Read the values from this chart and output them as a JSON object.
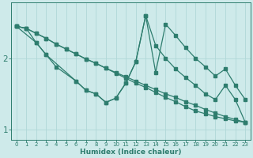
{
  "xlabel": "Humidex (Indice chaleur)",
  "bg_color": "#ceeaea",
  "line_color": "#2e7d6e",
  "grid_color": "#b0d8d8",
  "xlim": [
    -0.5,
    23.5
  ],
  "ylim": [
    0.85,
    2.78
  ],
  "yticks": [
    1,
    2
  ],
  "xticks": [
    0,
    1,
    2,
    3,
    4,
    5,
    6,
    7,
    8,
    9,
    10,
    11,
    12,
    13,
    14,
    15,
    16,
    17,
    18,
    19,
    20,
    21,
    22,
    23
  ],
  "line1_x": [
    0,
    1,
    2,
    3,
    4,
    5,
    6,
    7,
    8,
    9,
    10,
    11,
    12,
    13,
    14,
    15,
    16,
    17,
    18,
    19,
    20,
    21,
    22,
    23
  ],
  "line1_y": [
    2.45,
    2.42,
    2.35,
    2.28,
    2.2,
    2.13,
    2.06,
    1.99,
    1.93,
    1.86,
    1.79,
    1.72,
    1.65,
    1.59,
    1.52,
    1.45,
    1.39,
    1.32,
    1.26,
    1.22,
    1.18,
    1.15,
    1.12,
    1.1
  ],
  "line2_x": [
    0,
    1,
    2,
    3,
    4,
    5,
    6,
    7,
    8,
    9,
    10,
    11,
    12,
    13,
    14,
    15,
    16,
    17,
    18,
    19,
    20,
    21,
    22,
    23
  ],
  "line2_y": [
    2.45,
    2.42,
    2.35,
    2.28,
    2.2,
    2.13,
    2.06,
    1.99,
    1.93,
    1.86,
    1.8,
    1.74,
    1.68,
    1.62,
    1.56,
    1.5,
    1.45,
    1.39,
    1.34,
    1.28,
    1.23,
    1.18,
    1.14,
    1.1
  ],
  "line3_x": [
    0,
    2,
    3,
    4,
    6,
    7,
    8,
    9,
    10,
    11,
    12,
    13,
    14,
    15,
    16,
    17,
    18,
    19,
    20,
    21,
    22,
    23
  ],
  "line3_y": [
    2.45,
    2.22,
    2.05,
    1.88,
    1.68,
    1.55,
    1.5,
    1.38,
    1.44,
    1.65,
    1.95,
    2.6,
    2.18,
    2.0,
    1.85,
    1.73,
    1.62,
    1.5,
    1.42,
    1.62,
    1.42,
    1.1
  ],
  "line4_x": [
    0,
    1,
    2,
    3,
    6,
    7,
    8,
    9,
    10,
    11,
    12,
    13,
    14,
    15,
    16,
    17,
    18,
    19,
    20,
    21,
    22,
    23
  ],
  "line4_y": [
    2.45,
    2.42,
    2.22,
    2.05,
    1.68,
    1.55,
    1.5,
    1.38,
    1.44,
    1.65,
    1.95,
    2.6,
    1.8,
    2.48,
    2.32,
    2.15,
    2.0,
    1.88,
    1.75,
    1.85,
    1.62,
    1.42
  ]
}
